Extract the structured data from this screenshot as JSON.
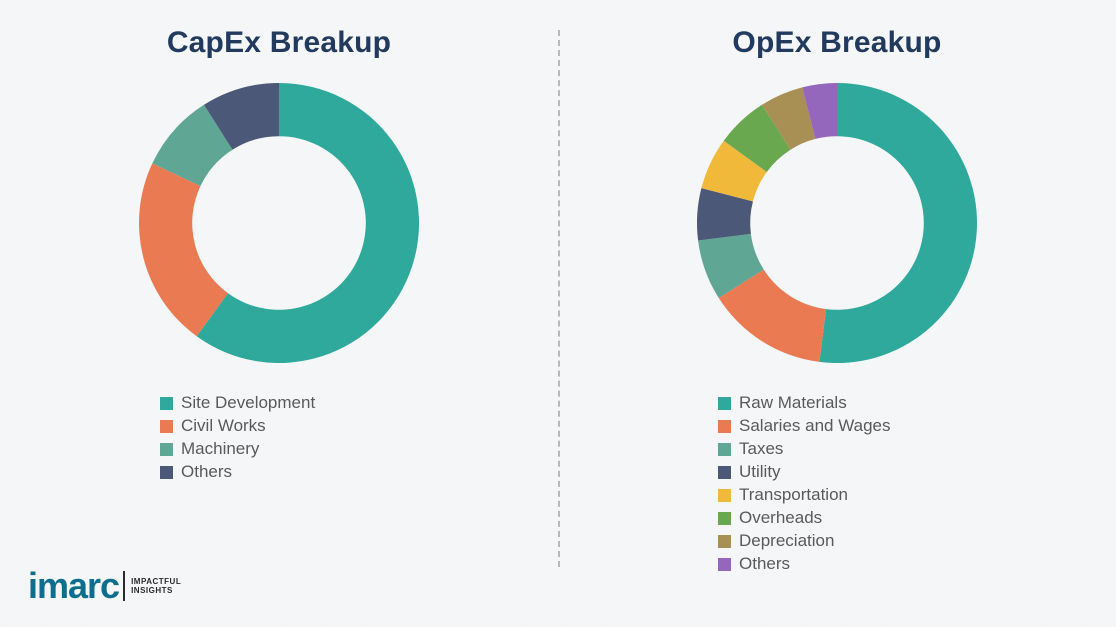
{
  "background_color": "#f4f6f7",
  "divider_color": "#b8b8b8",
  "title_color": "#223a5e",
  "legend_text_color": "#5a5a5a",
  "capex": {
    "title": "CapEx Breakup",
    "type": "donut",
    "inner_radius": 0.62,
    "start_angle_deg": 0,
    "segments": [
      {
        "label": "Site Development",
        "value": 60,
        "color": "#2ea99b"
      },
      {
        "label": "Civil Works",
        "value": 22,
        "color": "#e97a52"
      },
      {
        "label": "Machinery",
        "value": 9,
        "color": "#5fa794"
      },
      {
        "label": "Others",
        "value": 9,
        "color": "#4b5877"
      }
    ]
  },
  "opex": {
    "title": "OpEx Breakup",
    "type": "donut",
    "inner_radius": 0.62,
    "start_angle_deg": 0,
    "segments": [
      {
        "label": "Raw Materials",
        "value": 52,
        "color": "#2ea99b"
      },
      {
        "label": "Salaries and Wages",
        "value": 14,
        "color": "#e97a52"
      },
      {
        "label": "Taxes",
        "value": 7,
        "color": "#5fa794"
      },
      {
        "label": "Utility",
        "value": 6,
        "color": "#4b5877"
      },
      {
        "label": "Transportation",
        "value": 6,
        "color": "#f0b93a"
      },
      {
        "label": "Overheads",
        "value": 6,
        "color": "#6aa84f"
      },
      {
        "label": "Depreciation",
        "value": 5,
        "color": "#a88f53"
      },
      {
        "label": "Others",
        "value": 4,
        "color": "#9467bd"
      }
    ]
  },
  "logo": {
    "brand": "imarc",
    "tag_line1": "IMPACTFUL",
    "tag_line2": "INSIGHTS",
    "brand_color": "#0e6e8e"
  }
}
